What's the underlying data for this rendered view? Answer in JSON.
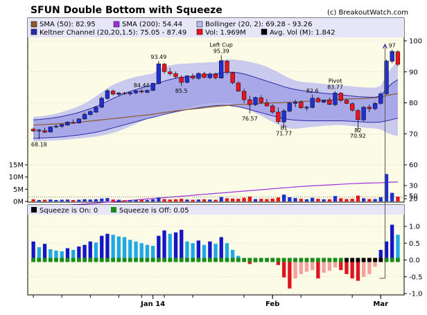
{
  "header": {
    "title": "SFUN Double Bottom with Squeeze",
    "copyright": "(c) BreakoutWatch.com"
  },
  "legend": {
    "sma50": "SMA (50): 82.95",
    "sma200": "SMA (200): 54.44",
    "bollinger": "Bollinger (20, 2): 69.28 - 93.26",
    "keltner": "Keltner Channel (20,20,1.5): 75.05 - 87.49",
    "vol": "Vol: 1.969M",
    "avgvol": "Avg. Vol (M): 1.842"
  },
  "squeeze_legend": {
    "on": "Squeeze is On: 0",
    "off": "Squeeze is Off: 0.05"
  },
  "colors": {
    "up": "#1f2fd0",
    "down": "#e8141e",
    "sma50": "#8b5a2b",
    "sma200": "#9a2ee0",
    "bollinger_fill": "#b9b9f2",
    "keltner_fill": "#9a9ae6",
    "keltner_line": "#2a2aa8",
    "bg": "#fbfbe6",
    "squeeze_on": "#000000",
    "squeeze_off": "#1a8a1a",
    "mom_pos_strong": "#1414c8",
    "mom_pos_weak": "#1ea8e6",
    "mom_neg_strong": "#e0141e",
    "mom_neg_weak": "#f4a0a0"
  },
  "chart_data": [
    {
      "type": "candlestick",
      "name": "price",
      "ylim": [
        60,
        100
      ],
      "y_ticks": [
        60,
        70,
        80,
        90,
        100
      ],
      "x_ticks": [
        "Jan 14",
        "Feb",
        "Mar"
      ],
      "dates_start": "2013-12-02",
      "x": [
        "2013-12-02",
        "2013-12-03",
        "2013-12-04",
        "2013-12-05",
        "2013-12-06",
        "2013-12-09",
        "2013-12-10",
        "2013-12-11",
        "2013-12-12",
        "2013-12-13",
        "2013-12-16",
        "2013-12-17",
        "2013-12-18",
        "2013-12-19",
        "2013-12-20",
        "2013-12-23",
        "2013-12-24",
        "2013-12-26",
        "2013-12-27",
        "2013-12-30",
        "2013-12-31",
        "2014-01-02",
        "2014-01-03",
        "2014-01-06",
        "2014-01-07",
        "2014-01-08",
        "2014-01-09",
        "2014-01-10",
        "2014-01-13",
        "2014-01-14",
        "2014-01-15",
        "2014-01-16",
        "2014-01-17",
        "2014-01-21",
        "2014-01-22",
        "2014-01-23",
        "2014-01-24",
        "2014-01-27",
        "2014-01-28",
        "2014-01-29",
        "2014-01-30",
        "2014-01-31",
        "2014-02-03",
        "2014-02-04",
        "2014-02-05",
        "2014-02-06",
        "2014-02-07",
        "2014-02-10",
        "2014-02-11",
        "2014-02-12",
        "2014-02-13",
        "2014-02-14",
        "2014-02-18",
        "2014-02-19",
        "2014-02-20",
        "2014-02-21",
        "2014-02-24",
        "2014-02-25",
        "2014-02-26",
        "2014-02-27",
        "2014-02-28",
        "2014-03-03",
        "2014-03-04",
        "2014-03-05",
        "2014-03-06"
      ],
      "ohlc": [
        [
          71.5,
          72.0,
          70.6,
          70.9
        ],
        [
          70.9,
          71.6,
          68.2,
          71.2
        ],
        [
          71.0,
          72.0,
          70.2,
          70.5
        ],
        [
          70.6,
          72.4,
          70.4,
          72.2
        ],
        [
          72.2,
          73.0,
          71.8,
          72.5
        ],
        [
          72.4,
          73.2,
          71.9,
          73.0
        ],
        [
          72.8,
          74.0,
          72.6,
          73.8
        ],
        [
          73.7,
          74.6,
          73.2,
          73.4
        ],
        [
          73.5,
          75.0,
          73.3,
          74.8
        ],
        [
          74.8,
          76.8,
          74.5,
          76.3
        ],
        [
          76.2,
          77.5,
          75.8,
          77.2
        ],
        [
          77.0,
          79.0,
          76.8,
          78.6
        ],
        [
          78.6,
          82.0,
          78.2,
          81.5
        ],
        [
          81.4,
          84.44,
          81.0,
          83.9
        ],
        [
          83.8,
          84.3,
          82.4,
          82.8
        ],
        [
          82.7,
          83.5,
          82.1,
          83.2
        ],
        [
          83.1,
          83.6,
          82.6,
          82.9
        ],
        [
          82.9,
          83.5,
          82.3,
          83.3
        ],
        [
          83.2,
          84.2,
          82.8,
          83.9
        ],
        [
          83.8,
          84.4,
          83.0,
          83.5
        ],
        [
          83.4,
          84.3,
          83.1,
          84.0
        ],
        [
          84.0,
          86.5,
          83.8,
          86.3
        ],
        [
          86.2,
          93.49,
          85.9,
          92.6
        ],
        [
          92.5,
          92.9,
          89.5,
          90.1
        ],
        [
          90.0,
          91.2,
          88.8,
          89.4
        ],
        [
          89.4,
          90.1,
          87.8,
          88.4
        ],
        [
          88.3,
          88.9,
          85.5,
          86.6
        ],
        [
          86.6,
          88.9,
          86.3,
          88.7
        ],
        [
          88.6,
          89.5,
          87.5,
          88.0
        ],
        [
          87.9,
          89.8,
          87.5,
          89.5
        ],
        [
          89.4,
          90.0,
          87.9,
          88.2
        ],
        [
          88.1,
          89.8,
          87.7,
          89.3
        ],
        [
          89.2,
          89.8,
          87.6,
          88.1
        ],
        [
          88.0,
          95.39,
          87.8,
          93.6
        ],
        [
          93.5,
          93.8,
          89.2,
          89.8
        ],
        [
          89.7,
          90.0,
          86.0,
          86.5
        ],
        [
          86.4,
          86.9,
          83.5,
          83.8
        ],
        [
          83.7,
          84.5,
          80.0,
          81.0
        ],
        [
          81.0,
          82.3,
          76.57,
          79.4
        ],
        [
          79.4,
          82.0,
          79.0,
          81.7
        ],
        [
          81.6,
          82.4,
          79.6,
          80.1
        ],
        [
          80.0,
          81.2,
          78.8,
          79.0
        ],
        [
          79.0,
          79.6,
          76.5,
          77.0
        ],
        [
          77.0,
          78.5,
          73.2,
          73.9
        ],
        [
          73.8,
          78.0,
          71.77,
          77.4
        ],
        [
          77.3,
          80.2,
          76.9,
          79.9
        ],
        [
          79.8,
          81.0,
          78.6,
          80.3
        ],
        [
          80.2,
          80.8,
          78.0,
          78.4
        ],
        [
          78.3,
          79.1,
          77.4,
          78.6
        ],
        [
          78.5,
          82.6,
          78.2,
          81.5
        ],
        [
          81.4,
          81.9,
          80.0,
          80.3
        ],
        [
          80.2,
          81.0,
          79.8,
          80.9
        ],
        [
          80.9,
          81.7,
          79.2,
          79.5
        ],
        [
          79.4,
          83.77,
          79.0,
          83.2
        ],
        [
          83.1,
          83.5,
          80.3,
          80.8
        ],
        [
          80.8,
          81.4,
          79.6,
          79.8
        ],
        [
          79.7,
          80.1,
          77.2,
          77.6
        ],
        [
          77.5,
          78.0,
          70.92,
          74.6
        ],
        [
          74.5,
          78.9,
          74.0,
          78.6
        ],
        [
          78.6,
          79.4,
          77.0,
          78.1
        ],
        [
          78.1,
          80.2,
          77.6,
          79.8
        ],
        [
          79.8,
          83.5,
          79.4,
          82.9
        ],
        [
          82.9,
          94.0,
          82.6,
          93.5
        ],
        [
          93.4,
          97.2,
          92.8,
          96.6
        ],
        [
          96.5,
          97.0,
          91.8,
          92.4
        ]
      ],
      "annotations": [
        {
          "index": 1,
          "text": "68.18",
          "pos": "below"
        },
        {
          "index": 19,
          "text": "84.44",
          "pos": "above"
        },
        {
          "index": 22,
          "text": "93.49",
          "pos": "above"
        },
        {
          "index": 26,
          "text": "85.5",
          "pos": "below"
        },
        {
          "index": 33,
          "text": "95.39",
          "pos": "above"
        },
        {
          "index": 33,
          "text": "Left Cup",
          "pos": "above2"
        },
        {
          "index": 38,
          "text": "76.57",
          "pos": "below"
        },
        {
          "index": 44,
          "text": "71.77",
          "pos": "below"
        },
        {
          "index": 44,
          "text": "81",
          "pos": "below_near"
        },
        {
          "index": 49,
          "text": "82.6",
          "pos": "above"
        },
        {
          "index": 53,
          "text": "83.77",
          "pos": "above"
        },
        {
          "index": 53,
          "text": "Pivot",
          "pos": "above2"
        },
        {
          "index": 57,
          "text": "70.92",
          "pos": "below"
        },
        {
          "index": 57,
          "text": "82",
          "pos": "below_near"
        },
        {
          "index": 63,
          "text": "97",
          "pos": "above"
        }
      ],
      "sma50": [
        72.8,
        72.9,
        73.0,
        73.1,
        73.2,
        73.3,
        73.4,
        73.5,
        73.7,
        73.9,
        74.1,
        74.3,
        74.5,
        74.7,
        74.9,
        75.1,
        75.3,
        75.5,
        75.7,
        75.9,
        76.1,
        76.3,
        76.6,
        76.9,
        77.1,
        77.4,
        77.6,
        77.8,
        78.0,
        78.2,
        78.4,
        78.6,
        78.8,
        79.0,
        79.1,
        79.3,
        79.4,
        79.5,
        79.6,
        79.7,
        79.8,
        79.9,
        80.0,
        80.0,
        80.1,
        80.2,
        80.3,
        80.4,
        80.5,
        80.6,
        80.7,
        80.8,
        80.9,
        81.0,
        81.1,
        81.2,
        81.3,
        81.3,
        81.4,
        81.5,
        81.6,
        81.9,
        82.3,
        82.7,
        82.95
      ],
      "sma200": [
        46.4,
        46.5,
        46.6,
        46.7,
        46.8,
        46.9,
        47.0,
        47.1,
        47.2,
        47.3,
        47.45,
        47.6,
        47.75,
        47.9,
        48.05,
        48.2,
        48.35,
        48.5,
        48.65,
        48.8,
        48.95,
        49.1,
        49.25,
        49.4,
        49.55,
        49.7,
        49.85,
        50.0,
        50.15,
        50.3,
        50.45,
        50.6,
        50.75,
        50.9,
        51.05,
        51.2,
        51.35,
        51.5,
        51.65,
        51.8,
        51.95,
        52.1,
        52.25,
        52.4,
        52.55,
        52.7,
        52.85,
        53.0,
        53.1,
        53.2,
        53.3,
        53.4,
        53.5,
        53.6,
        53.7,
        53.8,
        53.9,
        54.0,
        54.05,
        54.1,
        54.15,
        54.2,
        54.3,
        54.38,
        54.44
      ],
      "bollinger_upper": [
        75.5,
        75.6,
        75.8,
        76.1,
        76.5,
        77.0,
        77.6,
        78.2,
        78.9,
        79.8,
        80.9,
        82.1,
        83.4,
        84.7,
        85.8,
        86.6,
        87.3,
        87.9,
        88.4,
        88.8,
        89.1,
        89.4,
        90.8,
        91.6,
        92.1,
        92.4,
        92.6,
        92.7,
        92.8,
        92.9,
        93.0,
        93.1,
        93.1,
        93.8,
        94.0,
        94.0,
        93.8,
        93.6,
        93.2,
        92.8,
        92.3,
        91.6,
        90.8,
        89.9,
        88.8,
        87.9,
        87.2,
        86.8,
        86.6,
        86.5,
        86.3,
        86.1,
        85.9,
        85.8,
        85.6,
        85.4,
        85.3,
        85.1,
        85.0,
        84.9,
        84.9,
        85.5,
        88.9,
        91.6,
        93.26
      ],
      "bollinger_lower": [
        67.5,
        67.6,
        67.7,
        67.8,
        67.9,
        68.0,
        68.1,
        68.3,
        68.5,
        68.7,
        68.9,
        69.1,
        69.4,
        69.8,
        70.3,
        70.9,
        71.6,
        72.4,
        73.2,
        74.0,
        74.8,
        75.5,
        76.1,
        76.6,
        77.1,
        77.6,
        78.0,
        78.4,
        78.8,
        79.2,
        79.6,
        79.8,
        80.0,
        80.1,
        80.0,
        79.7,
        79.2,
        78.5,
        77.6,
        76.7,
        75.8,
        74.8,
        73.8,
        72.9,
        72.1,
        71.7,
        71.6,
        71.8,
        72.0,
        72.2,
        72.4,
        72.6,
        72.7,
        72.8,
        72.8,
        72.7,
        72.5,
        72.2,
        72.0,
        71.8,
        71.7,
        71.4,
        70.4,
        69.7,
        69.28
      ],
      "keltner_upper": [
        74.5,
        74.6,
        74.8,
        75.0,
        75.3,
        75.6,
        76.0,
        76.4,
        76.9,
        77.5,
        78.1,
        78.8,
        79.6,
        80.5,
        81.4,
        82.2,
        83.0,
        83.7,
        84.3,
        84.8,
        85.3,
        85.7,
        86.4,
        87.0,
        87.5,
        87.9,
        88.2,
        88.4,
        88.6,
        88.8,
        89.0,
        89.2,
        89.3,
        89.7,
        89.9,
        89.9,
        89.7,
        89.3,
        88.8,
        88.2,
        87.6,
        87.0,
        86.4,
        85.8,
        85.2,
        84.7,
        84.3,
        84.0,
        83.7,
        83.5,
        83.3,
        83.1,
        82.9,
        82.8,
        82.6,
        82.4,
        82.2,
        82.0,
        81.9,
        81.8,
        81.8,
        82.2,
        84.5,
        86.3,
        87.49
      ],
      "keltner_lower": [
        68.5,
        68.6,
        68.7,
        68.8,
        68.9,
        69.0,
        69.2,
        69.4,
        69.6,
        69.9,
        70.2,
        70.5,
        70.9,
        71.4,
        71.9,
        72.4,
        72.9,
        73.4,
        73.9,
        74.4,
        74.9,
        75.3,
        75.8,
        76.3,
        76.7,
        77.1,
        77.5,
        77.8,
        78.1,
        78.4,
        78.7,
        78.9,
        79.1,
        79.2,
        79.2,
        79.0,
        78.7,
        78.3,
        77.8,
        77.3,
        76.8,
        76.3,
        75.8,
        75.3,
        74.9,
        74.6,
        74.4,
        74.3,
        74.2,
        74.2,
        74.2,
        74.2,
        74.2,
        74.2,
        74.2,
        74.1,
        74.0,
        73.9,
        73.8,
        73.7,
        73.7,
        73.8,
        74.2,
        74.6,
        75.05
      ]
    },
    {
      "type": "bar",
      "name": "volume",
      "ylim": [
        0,
        17
      ],
      "y_ticks": [
        0,
        5,
        10,
        15
      ],
      "y_tick_labels": [
        "0M",
        "5M",
        "10M",
        "15M"
      ],
      "values": [
        0.9,
        0.6,
        0.7,
        0.8,
        0.6,
        0.7,
        0.8,
        0.6,
        0.7,
        0.9,
        0.8,
        0.9,
        1.2,
        1.4,
        0.8,
        0.7,
        0.5,
        0.6,
        0.7,
        0.8,
        0.6,
        0.9,
        1.6,
        1.0,
        0.8,
        0.9,
        1.1,
        0.8,
        0.7,
        0.8,
        0.9,
        0.8,
        0.7,
        1.8,
        1.3,
        1.2,
        1.1,
        1.5,
        2.0,
        1.0,
        1.1,
        1.0,
        1.2,
        1.6,
        2.8,
        1.7,
        1.4,
        1.1,
        0.9,
        1.5,
        1.1,
        0.9,
        0.9,
        2.2,
        1.3,
        1.0,
        1.1,
        2.4,
        1.3,
        1.0,
        1.0,
        1.7,
        11.2,
        3.5,
        1.969
      ],
      "avg_volume": 1.842
    },
    {
      "type": "bar",
      "name": "squeeze_momentum",
      "ylim": [
        -1.0,
        1.3
      ],
      "y_ticks": [
        -1.0,
        -0.5,
        0.0,
        0.5,
        1.0
      ],
      "values": [
        0.55,
        0.38,
        0.48,
        0.32,
        0.28,
        0.26,
        0.35,
        0.3,
        0.4,
        0.45,
        0.55,
        0.52,
        0.72,
        0.78,
        0.75,
        0.7,
        0.68,
        0.6,
        0.55,
        0.5,
        0.45,
        0.42,
        0.72,
        0.88,
        0.78,
        0.82,
        0.9,
        0.55,
        0.5,
        0.58,
        0.45,
        0.55,
        0.48,
        0.68,
        0.5,
        0.3,
        0.12,
        -0.02,
        -0.12,
        -0.08,
        -0.06,
        -0.05,
        -0.03,
        -0.15,
        -0.52,
        -0.85,
        -0.55,
        -0.42,
        -0.35,
        -0.3,
        -0.55,
        -0.38,
        -0.32,
        -0.22,
        -0.3,
        -0.42,
        -0.55,
        -0.62,
        -0.5,
        -0.42,
        -0.2,
        0.3,
        0.55,
        1.05,
        0.75
      ],
      "squeeze_on": [
        false,
        false,
        false,
        false,
        false,
        false,
        false,
        false,
        false,
        false,
        false,
        false,
        false,
        false,
        false,
        false,
        false,
        false,
        false,
        false,
        false,
        false,
        false,
        false,
        false,
        false,
        false,
        false,
        false,
        false,
        false,
        false,
        false,
        false,
        false,
        false,
        false,
        false,
        false,
        false,
        false,
        false,
        false,
        false,
        false,
        false,
        false,
        false,
        false,
        false,
        false,
        false,
        false,
        false,
        false,
        true,
        true,
        true,
        true,
        true,
        true,
        true,
        false,
        false,
        false
      ]
    }
  ]
}
